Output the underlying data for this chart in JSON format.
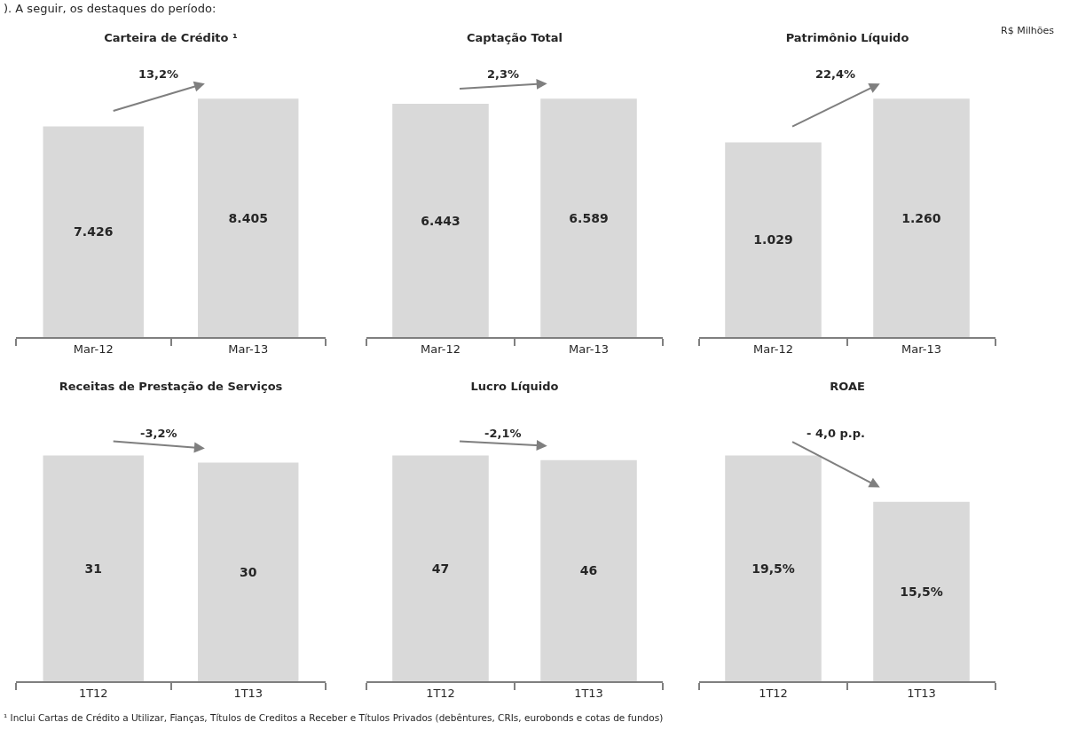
{
  "chart_data": [
    {
      "type": "bar",
      "title": "Carteira de Crédito ¹",
      "categories": [
        "Mar-12",
        "Mar-13"
      ],
      "values": [
        7426,
        8405
      ],
      "value_labels": [
        "7.426",
        "8.405"
      ],
      "color": "#d9d9d9",
      "annotations": [
        "13,2%",
        "). A seguir, os destaques do período:"
      ]
    },
    {
      "type": "bar",
      "title": "Captação Total",
      "categories": [
        "Mar-12",
        "Mar-13"
      ],
      "values": [
        6443,
        6589
      ],
      "value_labels": [
        "6.443",
        "6.589"
      ],
      "color": "#d9d9d9",
      "annotations": [
        "2,3%"
      ]
    },
    {
      "type": "bar",
      "title": "Patrimônio Líquido",
      "categories": [
        "Mar-12",
        "Mar-13"
      ],
      "values": [
        1029,
        1260
      ],
      "value_labels": [
        "1.029",
        "1.260"
      ],
      "color": "#d9d9d9",
      "annotations": [
        "22,4%",
        "R$ Milhões"
      ]
    },
    {
      "type": "bar",
      "title": "Receitas de Prestação de Serviços",
      "categories": [
        "1T12",
        "1T13"
      ],
      "values": [
        31,
        30
      ],
      "value_labels": [
        "31",
        "30"
      ],
      "color": "#d9d9d9",
      "annotations": [
        "-3,2%",
        "¹ Inclui Cartas de Crédito a Utilizar, Fianças, Títulos de Creditos a Receber e Títulos Privados (debêntures, CRIs, eurobonds e cotas de fundos)"
      ]
    },
    {
      "type": "bar",
      "title": "Lucro Líquido",
      "categories": [
        "1T12",
        "1T13"
      ],
      "values": [
        47,
        46
      ],
      "value_labels": [
        "47",
        "46"
      ],
      "color": "#d9d9d9",
      "annotations": [
        "-2,1%"
      ]
    },
    {
      "type": "bar",
      "title": "ROAE",
      "categories": [
        "1T12",
        "1T13"
      ],
      "values": [
        19.5,
        15.5
      ],
      "value_labels": [
        "19,5%",
        "15,5%"
      ],
      "color": "#d9d9d9",
      "annotations": [
        "- 4,0 p.p."
      ]
    }
  ]
}
